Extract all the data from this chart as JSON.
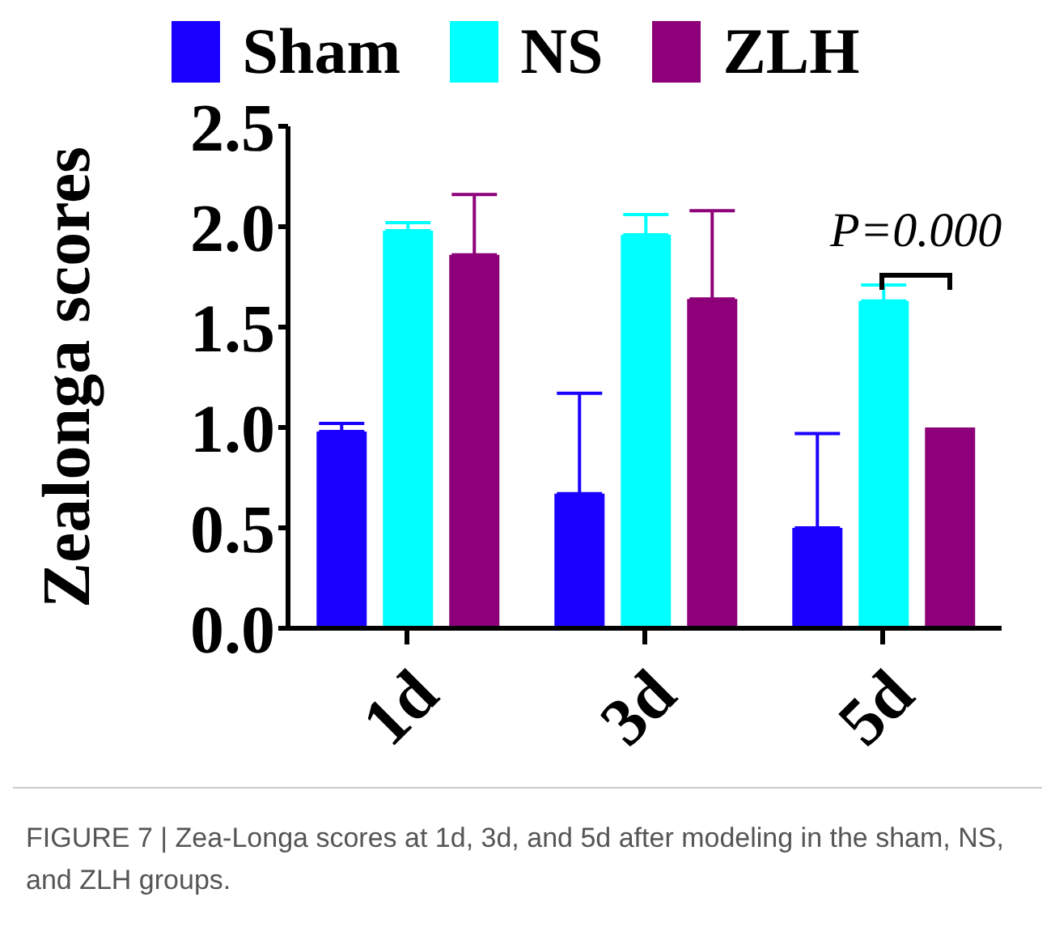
{
  "chart_data": {
    "type": "bar",
    "ylabel": "Zealonga  scores",
    "categories": [
      "1d",
      "3d",
      "5d"
    ],
    "series": [
      {
        "name": "Sham",
        "color": "#1a00ff",
        "values": [
          0.98,
          0.67,
          0.5
        ],
        "errors": [
          [
            0.98,
            1.02
          ],
          [
            0.67,
            1.17
          ],
          [
            0.5,
            0.97
          ]
        ]
      },
      {
        "name": "NS",
        "color": "#00ffff",
        "values": [
          1.98,
          1.96,
          1.63
        ],
        "errors": [
          [
            1.98,
            2.02
          ],
          [
            1.96,
            2.06
          ],
          [
            1.63,
            1.71
          ]
        ]
      },
      {
        "name": "ZLH",
        "color": "#8e0079",
        "values": [
          1.86,
          1.64,
          1.0
        ],
        "errors": [
          [
            1.86,
            2.16
          ],
          [
            1.64,
            2.08
          ],
          null
        ]
      }
    ],
    "ylim": [
      0,
      2.5
    ],
    "yticks": [
      {
        "value": 0,
        "label": "0.0"
      },
      0.5,
      {
        "value": 1,
        "label": "1.0"
      },
      1.5,
      {
        "value": 2,
        "label": "2.0"
      },
      2.5
    ],
    "grid": false,
    "legend": "top",
    "annotations": [
      "P=0.000",
      "FIGURE 7 | Zea-Longa scores at 1d, 3d, and 5d after modeling in the sham, NS, and ZLH groups."
    ]
  }
}
